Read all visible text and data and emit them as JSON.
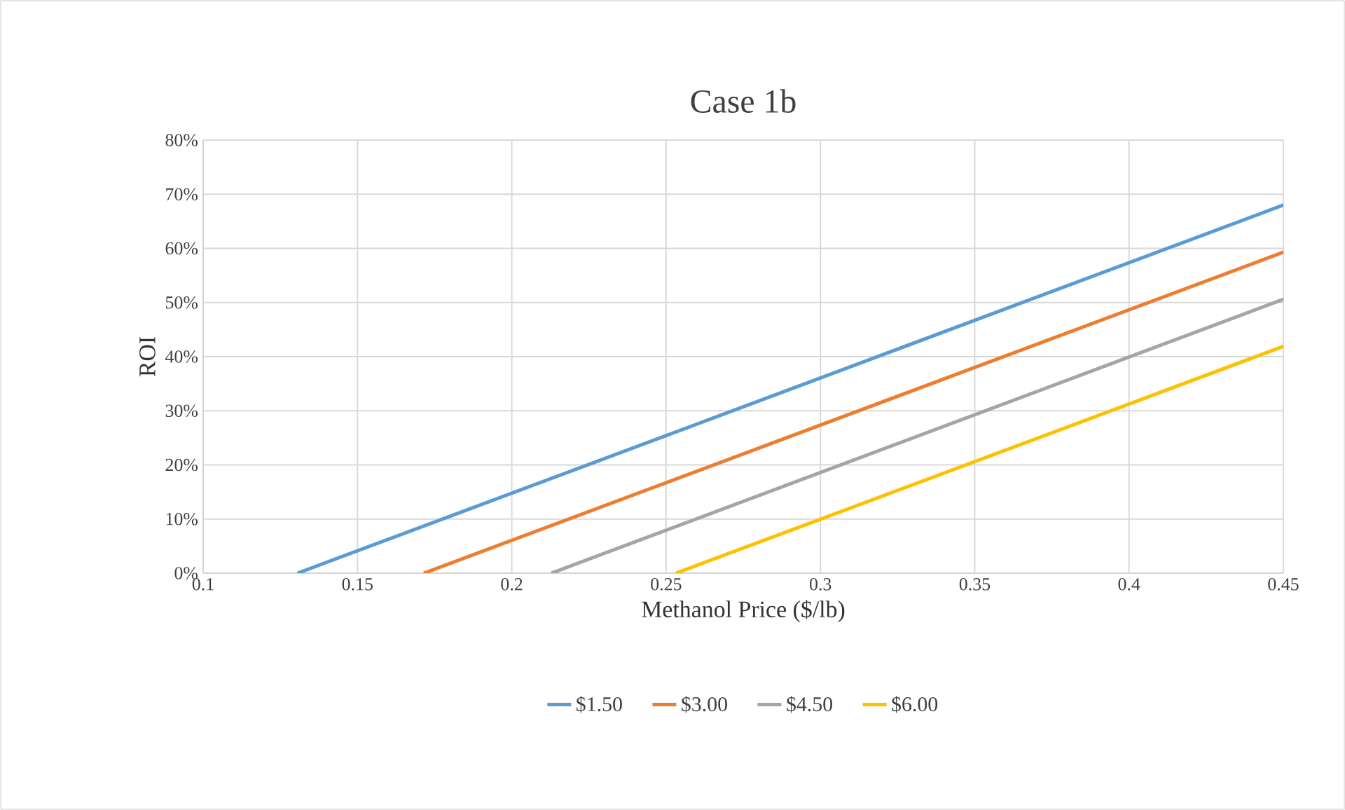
{
  "chart_data": {
    "type": "line",
    "title": "Case 1b",
    "xlabel": "Methanol Price ($/lb)",
    "ylabel": "ROI",
    "xlim": [
      0.1,
      0.45
    ],
    "xticks": [
      0.1,
      0.15,
      0.2,
      0.25,
      0.3,
      0.35,
      0.4,
      0.45
    ],
    "ylim": [
      0,
      0.8
    ],
    "yticks": [
      {
        "value": 0,
        "label": "0%"
      },
      {
        "value": 0.1,
        "label": "10%"
      },
      {
        "value": 0.2,
        "label": "20%"
      },
      {
        "value": 0.3,
        "label": "30%"
      },
      {
        "value": 0.4,
        "label": "40%"
      },
      {
        "value": 0.5,
        "label": "50%"
      },
      {
        "value": 0.6,
        "label": "60%"
      },
      {
        "value": 0.7,
        "label": "70%"
      },
      {
        "value": 0.8,
        "label": "80%"
      }
    ],
    "grid": true,
    "legend": "bottom",
    "marker": "none",
    "line_style": "solid",
    "series": [
      {
        "name": "$1.50",
        "color": "#5b9bd5",
        "x": [
          0.1306,
          0.45
        ],
        "values": [
          0,
          0.68
        ]
      },
      {
        "name": "$3.00",
        "color": "#ed7d31",
        "x": [
          0.1715,
          0.45
        ],
        "values": [
          0,
          0.593
        ]
      },
      {
        "name": "$4.50",
        "color": "#a5a5a5",
        "x": [
          0.2128,
          0.45
        ],
        "values": [
          0,
          0.506
        ]
      },
      {
        "name": "$6.00",
        "color": "#ffc000",
        "x": [
          0.2532,
          0.45
        ],
        "values": [
          0,
          0.419
        ]
      }
    ]
  }
}
